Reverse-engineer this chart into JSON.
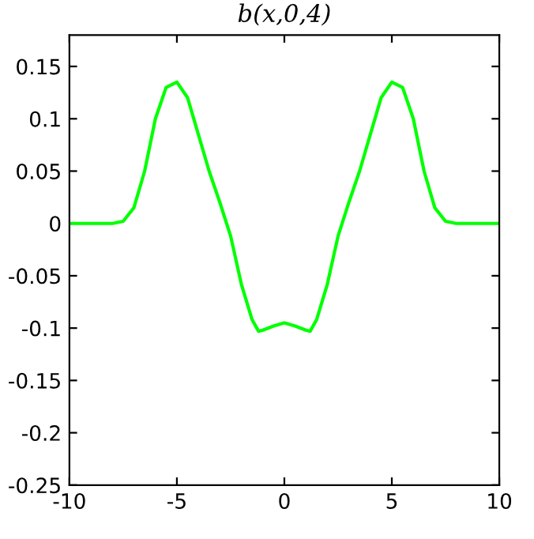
{
  "chart_data": {
    "type": "line",
    "title": "b(x,0,4)",
    "x": [
      -10,
      -8,
      -7.5,
      -7,
      -6.5,
      -6,
      -5.5,
      -5,
      -4.5,
      -4,
      -3.5,
      -3,
      -2.5,
      -2,
      -1.5,
      -1.2,
      -1,
      -0.5,
      0,
      0.5,
      1,
      1.2,
      1.5,
      2,
      2.5,
      3,
      3.5,
      4,
      4.5,
      5,
      5.5,
      6,
      6.5,
      7,
      7.5,
      8,
      10
    ],
    "series": [
      {
        "color": "#00ff00",
        "values": [
          0,
          0,
          0.002,
          0.015,
          0.05,
          0.1,
          0.13,
          0.135,
          0.12,
          0.085,
          0.05,
          0.02,
          -0.012,
          -0.058,
          -0.092,
          -0.103,
          -0.102,
          -0.098,
          -0.095,
          -0.098,
          -0.102,
          -0.103,
          -0.092,
          -0.058,
          -0.012,
          0.02,
          0.05,
          0.085,
          0.12,
          0.135,
          0.13,
          0.1,
          0.05,
          0.015,
          0.002,
          0,
          0
        ]
      }
    ],
    "xlim": [
      -10,
      10
    ],
    "xticks": [
      -10,
      -5,
      0,
      5,
      10
    ],
    "ylim": [
      -0.25,
      0.18
    ],
    "yticks": [
      -0.25,
      -0.2,
      -0.15,
      -0.1,
      -0.05,
      0,
      0.05,
      0.1,
      0.15
    ],
    "grid": false
  }
}
